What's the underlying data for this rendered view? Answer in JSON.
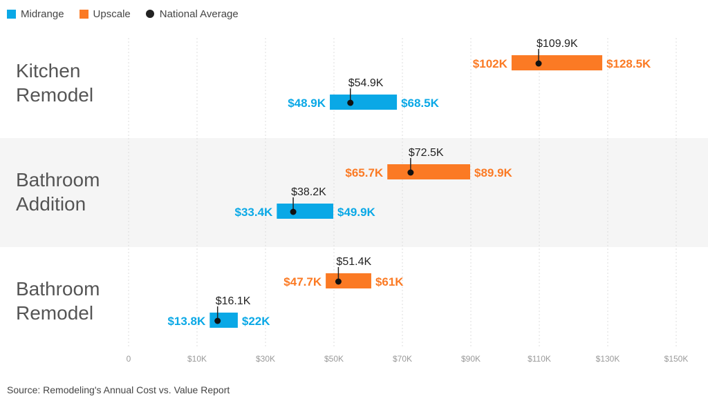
{
  "legend": {
    "midrange": {
      "label": "Midrange",
      "color": "#0aa8e6"
    },
    "upscale": {
      "label": "Upscale",
      "color": "#fb7a24"
    },
    "national": {
      "label": "National Average",
      "color": "#222222"
    }
  },
  "source": "Source: Remodeling's Annual Cost vs. Value Report",
  "chart_data": {
    "type": "range-bar",
    "title": "",
    "xlabel": "",
    "ylabel": "",
    "x_tick_labels": [
      "0",
      "$10K",
      "$30K",
      "$50K",
      "$70K",
      "$90K",
      "$110K",
      "$130K",
      "$150K"
    ],
    "grid": true,
    "legend_position": "top-left",
    "categories": [
      {
        "name": "Kitchen Remodel",
        "lines": [
          "Kitchen",
          "Remodel"
        ],
        "shaded": false,
        "upscale": {
          "low": 102,
          "high": 128.5,
          "avg": 109.9,
          "low_label": "$102K",
          "high_label": "$128.5K",
          "avg_label": "$109.9K"
        },
        "midrange": {
          "low": 48.9,
          "high": 68.5,
          "avg": 54.9,
          "low_label": "$48.9K",
          "high_label": "$68.5K",
          "avg_label": "$54.9K"
        }
      },
      {
        "name": "Bathroom Addition",
        "lines": [
          "Bathroom",
          "Addition"
        ],
        "shaded": true,
        "upscale": {
          "low": 65.7,
          "high": 89.9,
          "avg": 72.5,
          "low_label": "$65.7K",
          "high_label": "$89.9K",
          "avg_label": "$72.5K"
        },
        "midrange": {
          "low": 33.4,
          "high": 49.9,
          "avg": 38.2,
          "low_label": "$33.4K",
          "high_label": "$49.9K",
          "avg_label": "$38.2K"
        }
      },
      {
        "name": "Bathroom Remodel",
        "lines": [
          "Bathroom",
          "Remodel"
        ],
        "shaded": false,
        "upscale": {
          "low": 47.7,
          "high": 61,
          "avg": 51.4,
          "low_label": "$47.7K",
          "high_label": "$61K",
          "avg_label": "$51.4K"
        },
        "midrange": {
          "low": 13.8,
          "high": 22,
          "avg": 16.1,
          "low_label": "$13.8K",
          "high_label": "$22K",
          "avg_label": "$16.1K"
        }
      }
    ],
    "units": "thousands of USD"
  }
}
